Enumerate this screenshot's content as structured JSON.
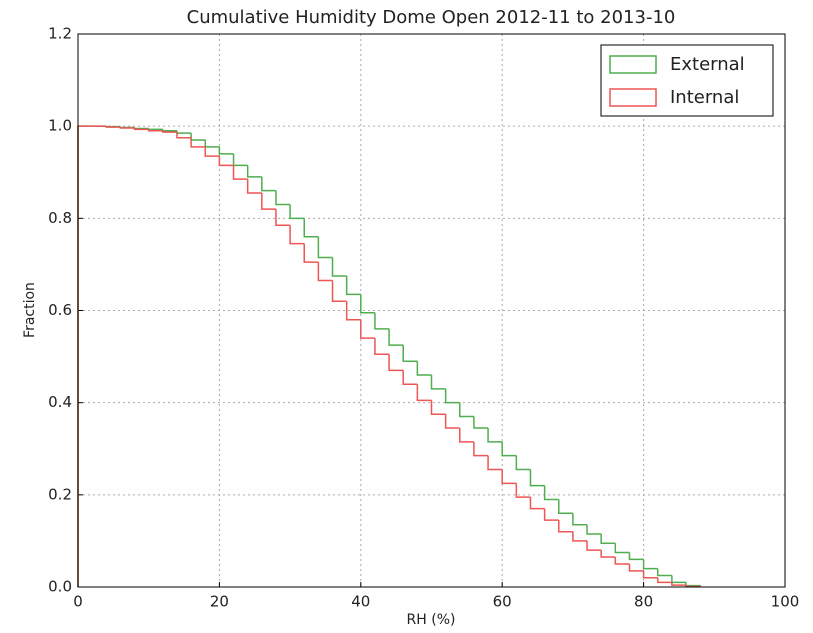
{
  "chart_data": {
    "type": "step-histogram",
    "title": "Cumulative Humidity Dome Open 2012-11 to 2013-10",
    "xlabel": "RH (%)",
    "ylabel": "Fraction",
    "bins": [
      0,
      2,
      4,
      6,
      8,
      10,
      12,
      14,
      16,
      18,
      20,
      22,
      24,
      26,
      28,
      30,
      32,
      34,
      36,
      38,
      40,
      42,
      44,
      46,
      48,
      50,
      52,
      54,
      56,
      58,
      60,
      62,
      64,
      66,
      68,
      70,
      72,
      74,
      76,
      78,
      80,
      82,
      84,
      86,
      88
    ],
    "series": [
      {
        "name": "External",
        "color": "#4fae4f",
        "values": [
          1.0,
          1.0,
          0.999,
          0.997,
          0.995,
          0.993,
          0.99,
          0.985,
          0.97,
          0.955,
          0.94,
          0.915,
          0.89,
          0.86,
          0.83,
          0.8,
          0.76,
          0.715,
          0.675,
          0.635,
          0.595,
          0.56,
          0.525,
          0.49,
          0.46,
          0.43,
          0.4,
          0.37,
          0.345,
          0.315,
          0.285,
          0.255,
          0.22,
          0.19,
          0.16,
          0.135,
          0.115,
          0.095,
          0.075,
          0.06,
          0.04,
          0.025,
          0.01,
          0.003
        ]
      },
      {
        "name": "Internal",
        "color": "#ee5555",
        "values": [
          1.0,
          1.0,
          0.998,
          0.996,
          0.993,
          0.99,
          0.987,
          0.975,
          0.955,
          0.935,
          0.915,
          0.885,
          0.855,
          0.82,
          0.785,
          0.745,
          0.705,
          0.665,
          0.62,
          0.58,
          0.54,
          0.505,
          0.47,
          0.44,
          0.405,
          0.375,
          0.345,
          0.315,
          0.285,
          0.255,
          0.225,
          0.195,
          0.17,
          0.145,
          0.12,
          0.1,
          0.08,
          0.065,
          0.05,
          0.035,
          0.02,
          0.01,
          0.004,
          0.001
        ]
      }
    ],
    "xlim": [
      0,
      100
    ],
    "xticks": [
      0,
      20,
      40,
      60,
      80,
      100
    ],
    "ylim": [
      0,
      1.2
    ],
    "yticks": [
      {
        "value": 0,
        "label": "0.0"
      },
      {
        "value": 0.2,
        "label": "0.2"
      },
      {
        "value": 0.4,
        "label": "0.4"
      },
      {
        "value": 0.6,
        "label": "0.6"
      },
      {
        "value": 0.8,
        "label": "0.8"
      },
      {
        "value": 1.0,
        "label": "1.0"
      },
      {
        "value": 1.2,
        "label": "1.2"
      }
    ],
    "grid": true,
    "legend": "upper right"
  }
}
